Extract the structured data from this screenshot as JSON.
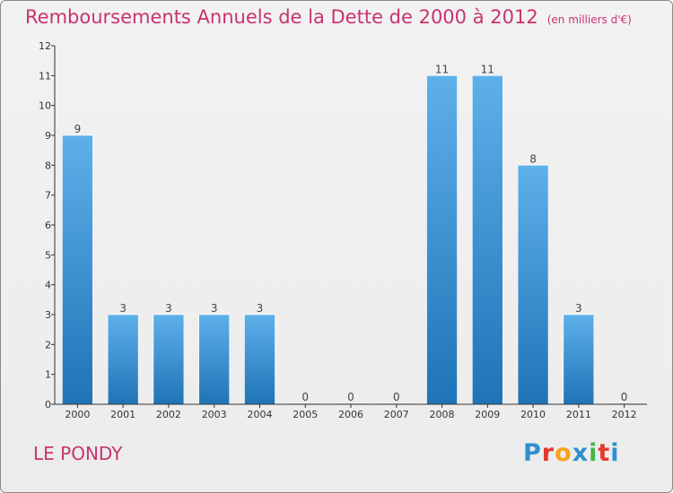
{
  "title": "Remboursements Annuels de la Dette de 2000 à 2012",
  "unit": "(en milliers d'€)",
  "commune": "LE PONDY",
  "logo": {
    "text": "Proxiti",
    "colors": [
      "#2f8fd0",
      "#e23a2b",
      "#f7a21b",
      "#2f8fd0",
      "#47b34a",
      "#e23a2b",
      "#2f8fd0"
    ]
  },
  "colors": {
    "title": "#c8336f",
    "bar_top": "#5eb0ea",
    "bar_bottom": "#1f74b7",
    "axis": "#333333"
  },
  "chart_data": {
    "type": "bar",
    "title": "Remboursements Annuels de la Dette de 2000 à 2012",
    "subtitle": "(en milliers d'€)",
    "xlabel": "",
    "ylabel": "",
    "categories": [
      "2000",
      "2001",
      "2002",
      "2003",
      "2004",
      "2005",
      "2006",
      "2007",
      "2008",
      "2009",
      "2010",
      "2011",
      "2012"
    ],
    "values": [
      9,
      3,
      3,
      3,
      3,
      0,
      0,
      0,
      11,
      11,
      8,
      3,
      0
    ],
    "ylim": [
      0,
      12
    ],
    "yticks": [
      0,
      1,
      2,
      3,
      4,
      5,
      6,
      7,
      8,
      9,
      10,
      11,
      12
    ],
    "grid": false,
    "legend": "none"
  }
}
